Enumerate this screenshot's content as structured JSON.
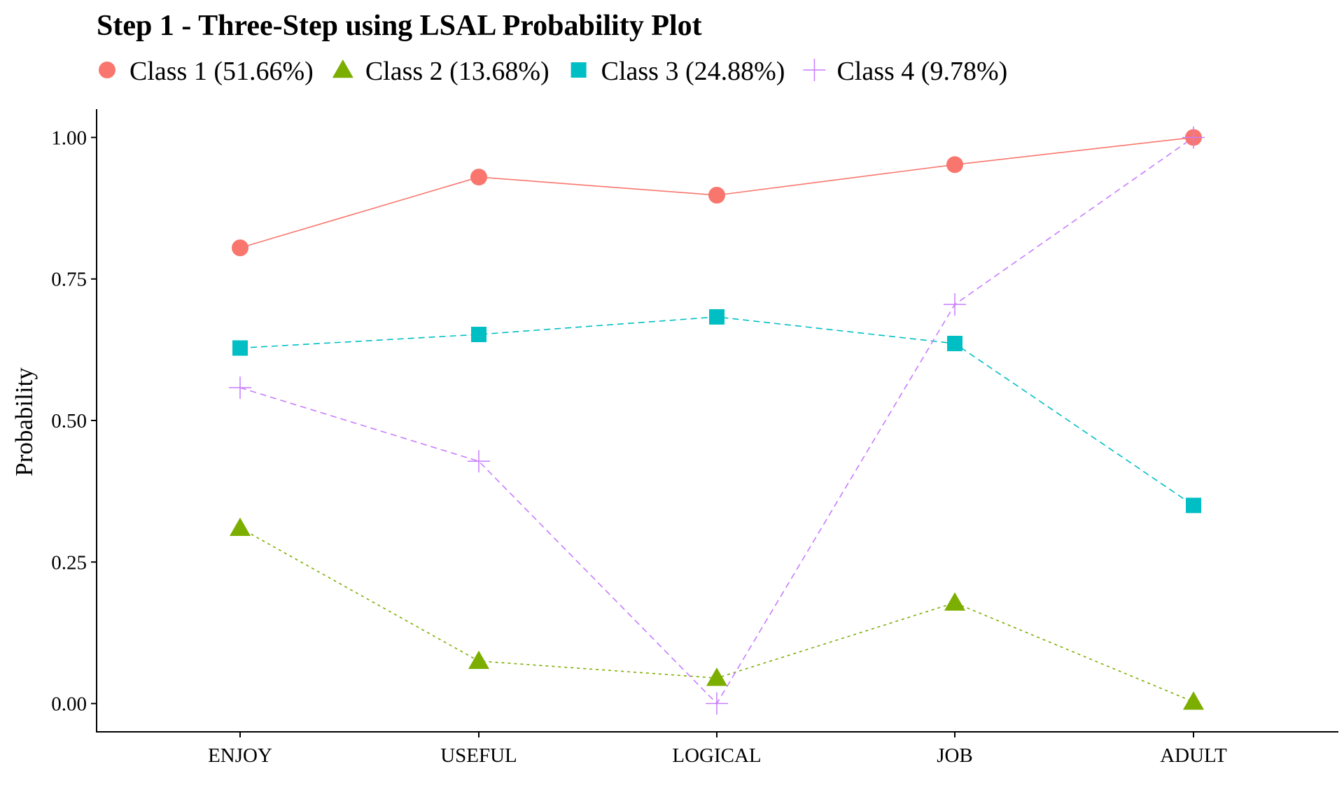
{
  "chart_data": {
    "type": "line",
    "title": "Step 1 - Three-Step using LSAL Probability Plot",
    "xlabel": "",
    "ylabel": "Probability",
    "ylim": [
      -0.05,
      1.05
    ],
    "yticks": [
      "0.00",
      "0.25",
      "0.50",
      "0.75",
      "1.00"
    ],
    "ytick_values": [
      0,
      0.25,
      0.5,
      0.75,
      1.0
    ],
    "categories": [
      "ENJOY",
      "USEFUL",
      "LOGICAL",
      "JOB",
      "ADULT"
    ],
    "grid": false,
    "legend_position": "top-left",
    "series": [
      {
        "name": "Class 1 (51.66%)",
        "values": [
          0.805,
          0.93,
          0.898,
          0.952,
          1.0
        ],
        "color": "#F8766D",
        "marker": "circle",
        "line": "solid"
      },
      {
        "name": "Class 2 (13.68%)",
        "values": [
          0.31,
          0.075,
          0.045,
          0.178,
          0.003
        ],
        "color": "#7CAE00",
        "marker": "triangle",
        "line": "dotted"
      },
      {
        "name": "Class 3 (24.88%)",
        "values": [
          0.628,
          0.652,
          0.683,
          0.636,
          0.35
        ],
        "color": "#00BFC4",
        "marker": "square",
        "line": "dashed"
      },
      {
        "name": "Class 4 (9.78%)",
        "values": [
          0.558,
          0.428,
          0.0,
          0.705,
          1.0
        ],
        "color": "#C77CFF",
        "marker": "plus",
        "line": "dashed"
      }
    ]
  }
}
